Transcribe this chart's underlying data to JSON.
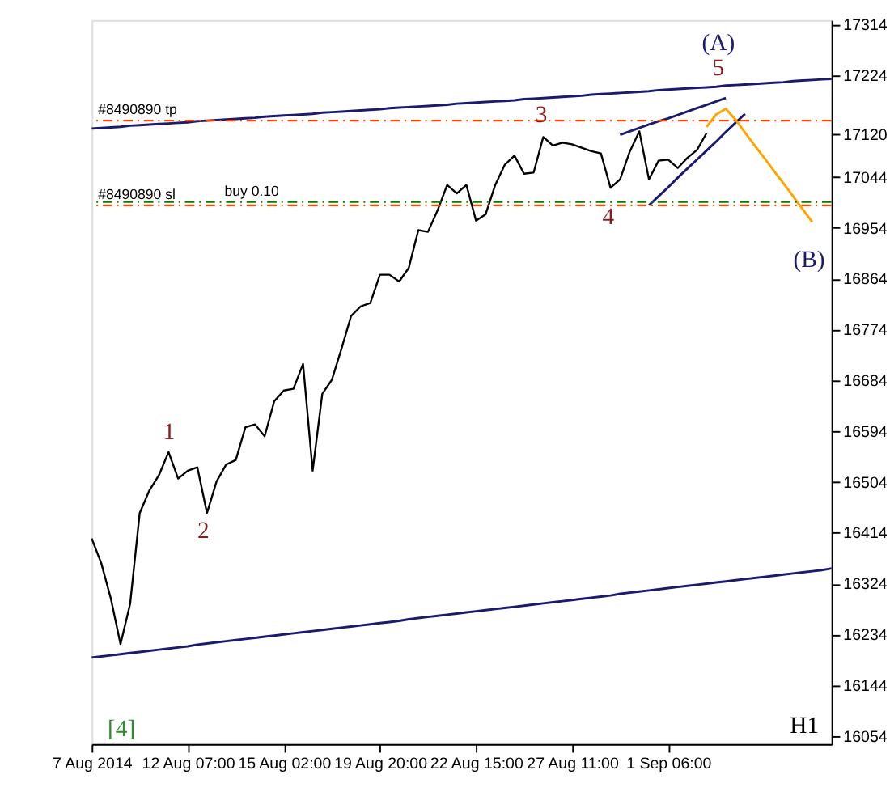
{
  "chart_data": {
    "type": "line",
    "categories": [
      "7 Aug 2014",
      null,
      null,
      null,
      null,
      null,
      null,
      null,
      null,
      null,
      "12 Aug 07:00",
      null,
      null,
      null,
      null,
      null,
      null,
      null,
      null,
      null,
      "15 Aug 02:00",
      null,
      null,
      null,
      null,
      null,
      null,
      null,
      null,
      null,
      "19 Aug 20:00",
      null,
      null,
      null,
      null,
      null,
      null,
      null,
      null,
      null,
      "22 Aug 15:00",
      null,
      null,
      null,
      null,
      null,
      null,
      null,
      null,
      null,
      "27 Aug 11:00",
      null,
      null,
      null,
      null,
      null,
      null,
      null,
      null,
      null,
      "1 Sep 06:00",
      null,
      null,
      null,
      null,
      null,
      null,
      null,
      null,
      null,
      null,
      null,
      null,
      null,
      null,
      null,
      null,
      null
    ],
    "ylim": [
      16040,
      17322
    ],
    "yticks": [
      17314,
      17224,
      17120,
      17044,
      16954,
      16864,
      16774,
      16684,
      16594,
      16504,
      16414,
      16324,
      16234,
      16144,
      16054
    ],
    "grid": false,
    "line_style": "solid",
    "series": [
      {
        "color": "#000000",
        "values": [
          16404,
          16360,
          16297,
          16217,
          16288,
          16449,
          16489,
          16516,
          16557,
          16510,
          16524,
          16530,
          16449,
          16505,
          16535,
          16543,
          16601,
          16606,
          16585,
          16647,
          16666,
          16669,
          16713,
          16524,
          16660,
          16685,
          16740,
          16798,
          16815,
          16821,
          16871,
          16871,
          16859,
          16883,
          16950,
          16947,
          16985,
          17030,
          17015,
          17030,
          16967,
          16978,
          17030,
          17066,
          17082,
          17050,
          17052,
          17115,
          17100,
          17105,
          17102,
          17096,
          17090,
          17086,
          17025,
          17040,
          17089,
          17125,
          17040,
          17073,
          17075,
          17060,
          17078,
          17092,
          17122,
          null,
          null,
          null,
          null,
          null,
          null,
          null,
          null,
          null,
          null,
          null,
          null,
          null
        ]
      },
      {
        "color": "#1a1a6e",
        "values": [
          17130,
          17131,
          17132,
          17133,
          17135,
          17136,
          17137,
          17138,
          17139,
          17140,
          17141,
          17143,
          17144,
          17145,
          17146,
          17147,
          17148,
          17149,
          17151,
          17152,
          17153,
          17154,
          17155,
          17156,
          17158,
          17159,
          17160,
          17161,
          17162,
          17163,
          17164,
          17166,
          17167,
          17168,
          17169,
          17170,
          17171,
          17172,
          17174,
          17175,
          17176,
          17177,
          17178,
          17179,
          17180,
          17182,
          17183,
          17184,
          17185,
          17186,
          17187,
          17188,
          17190,
          17191,
          17192,
          17193,
          17194,
          17195,
          17196,
          17198,
          17199,
          17200,
          17201,
          17202,
          17203,
          17204,
          17206,
          17207,
          17208,
          17209,
          17210,
          17211,
          17212,
          17214,
          17215,
          17216,
          17217,
          17218
        ]
      },
      {
        "color": "#1a1a6e",
        "values": [
          16193,
          16195,
          16197,
          16199,
          16201,
          16203,
          16205,
          16207,
          16209,
          16211,
          16213,
          16216,
          16218,
          16220,
          16222,
          16224,
          16226,
          16228,
          16230,
          16232,
          16234,
          16236,
          16238,
          16240,
          16242,
          16244,
          16246,
          16248,
          16250,
          16252,
          16254,
          16256,
          16258,
          16261,
          16263,
          16265,
          16267,
          16269,
          16271,
          16273,
          16275,
          16277,
          16279,
          16281,
          16283,
          16285,
          16287,
          16289,
          16291,
          16293,
          16295,
          16297,
          16299,
          16301,
          16303,
          16306,
          16308,
          16310,
          16312,
          16314,
          16316,
          16318,
          16320,
          16322,
          16324,
          16326,
          16328,
          16330,
          16332,
          16334,
          16336,
          16338,
          16340,
          16342,
          16344,
          16346,
          16348,
          16351
        ]
      },
      {
        "color": "#1a1a6e",
        "values": [
          null,
          null,
          null,
          null,
          null,
          null,
          null,
          null,
          null,
          null,
          null,
          null,
          null,
          null,
          null,
          null,
          null,
          null,
          null,
          null,
          null,
          null,
          null,
          null,
          null,
          null,
          null,
          null,
          null,
          null,
          null,
          null,
          null,
          null,
          null,
          null,
          null,
          null,
          null,
          null,
          null,
          null,
          null,
          null,
          null,
          null,
          null,
          null,
          null,
          null,
          null,
          null,
          null,
          null,
          null,
          17119,
          17125,
          17131,
          17137,
          17143,
          17148,
          17154,
          17160,
          17166,
          17172,
          17178,
          17184,
          null,
          null,
          null,
          null,
          null,
          null,
          null,
          null,
          null,
          null,
          null
        ]
      },
      {
        "color": "#1a1a6e",
        "values": [
          null,
          null,
          null,
          null,
          null,
          null,
          null,
          null,
          null,
          null,
          null,
          null,
          null,
          null,
          null,
          null,
          null,
          null,
          null,
          null,
          null,
          null,
          null,
          null,
          null,
          null,
          null,
          null,
          null,
          null,
          null,
          null,
          null,
          null,
          null,
          null,
          null,
          null,
          null,
          null,
          null,
          null,
          null,
          null,
          null,
          null,
          null,
          null,
          null,
          null,
          null,
          null,
          null,
          null,
          null,
          null,
          null,
          null,
          16994,
          17010,
          17026,
          17043,
          17059,
          17075,
          17091,
          17107,
          17124,
          17140,
          17156,
          null,
          null,
          null,
          null,
          null,
          null,
          null,
          null,
          null
        ]
      },
      {
        "color": "#ffa500",
        "values": [
          null,
          null,
          null,
          null,
          null,
          null,
          null,
          null,
          null,
          null,
          null,
          null,
          null,
          null,
          null,
          null,
          null,
          null,
          null,
          null,
          null,
          null,
          null,
          null,
          null,
          null,
          null,
          null,
          null,
          null,
          null,
          null,
          null,
          null,
          null,
          null,
          null,
          null,
          null,
          null,
          null,
          null,
          null,
          null,
          null,
          null,
          null,
          null,
          null,
          null,
          null,
          null,
          null,
          null,
          null,
          null,
          null,
          null,
          null,
          null,
          null,
          null,
          null,
          null,
          17133,
          17155,
          17165,
          17146,
          17123,
          17100,
          17078,
          17055,
          17033,
          17010,
          16987,
          16964,
          null,
          null
        ]
      }
    ],
    "ref_lines": [
      {
        "axis": "y",
        "value": 17144,
        "label": "#8490890 tp",
        "color": "#ff4500",
        "line_style": "dashed"
      },
      {
        "axis": "y",
        "value": 16994,
        "label": "#8490890 sl",
        "color": "#ff4500",
        "line_style": "dashed"
      },
      {
        "axis": "y",
        "value": 17000,
        "label": "buy 0.10",
        "color": "#008000",
        "line_style": "dashed"
      }
    ],
    "annotations": [
      "1",
      "2",
      "3",
      "4",
      "5",
      "(A)",
      "(B)",
      "[4]",
      "H1"
    ]
  }
}
